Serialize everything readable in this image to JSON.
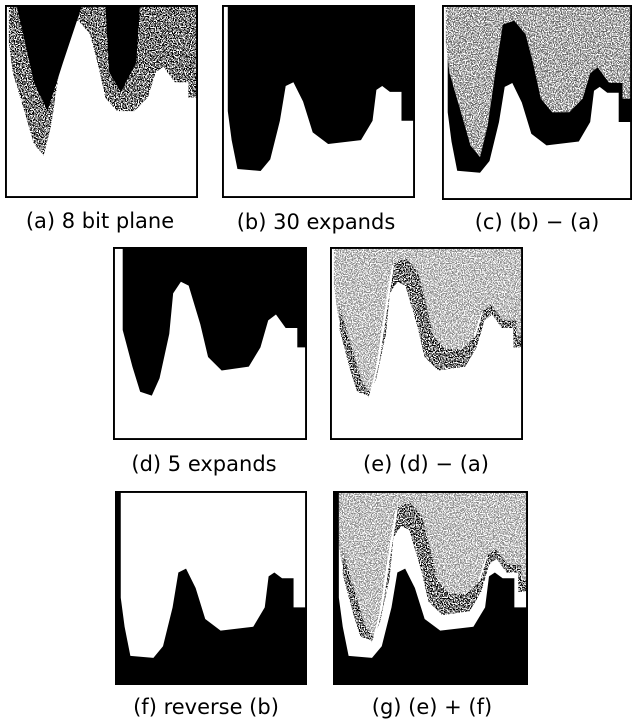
{
  "panels": [
    {
      "caption": "(a) 8 bit plane"
    },
    {
      "caption": "(b) 30 expands"
    },
    {
      "caption": "(c) (b) − (a)"
    },
    {
      "caption": "(d) 5 expands"
    },
    {
      "caption": "(e) (d) − (a)"
    },
    {
      "caption": "(f) reverse (b)"
    },
    {
      "caption": "(g) (e) + (f)"
    }
  ]
}
